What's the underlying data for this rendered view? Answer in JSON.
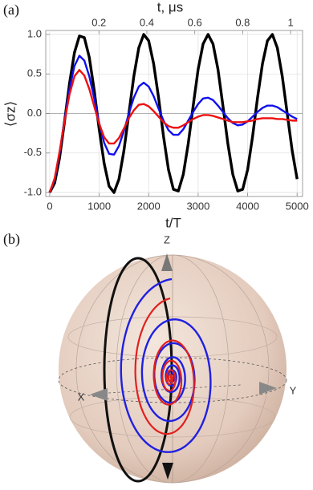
{
  "chart_data": {
    "type": "line",
    "panel_label": "(a)",
    "xlabel": "t/T",
    "x2label": "t, μs",
    "ylabel": "⟨σz⟩",
    "xlim": [
      -80,
      5110
    ],
    "xticks": [
      0,
      1000,
      2000,
      3000,
      4000,
      5000
    ],
    "x2lim": [
      -0.022,
      1.05
    ],
    "x2ticks": [
      0.2,
      0.4,
      0.6,
      0.8,
      1
    ],
    "ylim": [
      -1.05,
      1.05
    ],
    "yticks": [
      {
        "value": -1,
        "label": "-1.0"
      },
      {
        "value": -0.5,
        "label": "-0.5"
      },
      {
        "value": 0,
        "label": "0.0"
      },
      {
        "value": 0.5,
        "label": "0.5"
      },
      {
        "value": 1,
        "label": "1.0"
      }
    ],
    "grid": true,
    "x": [
      0,
      100,
      200,
      300,
      400,
      500,
      600,
      700,
      800,
      900,
      1000,
      1100,
      1200,
      1300,
      1400,
      1500,
      1600,
      1700,
      1800,
      1900,
      2000,
      2100,
      2200,
      2300,
      2400,
      2500,
      2600,
      2700,
      2800,
      2900,
      3000,
      3100,
      3200,
      3300,
      3400,
      3500,
      3600,
      3700,
      3800,
      3900,
      4000,
      4100,
      4200,
      4300,
      4400,
      4500,
      4600,
      4700,
      4800,
      4900,
      5000
    ],
    "series": [
      {
        "color": "#000000",
        "values": [
          -1,
          -0.88,
          -0.56,
          -0.1,
          0.38,
          0.77,
          0.98,
          0.96,
          0.71,
          0.29,
          -0.2,
          -0.63,
          -0.92,
          -1,
          -0.83,
          -0.47,
          0,
          0.47,
          0.83,
          1,
          0.92,
          0.63,
          0.2,
          -0.29,
          -0.71,
          -0.96,
          -0.98,
          -0.77,
          -0.38,
          0.1,
          0.56,
          0.88,
          1,
          0.88,
          0.56,
          0.1,
          -0.38,
          -0.77,
          -0.98,
          -0.96,
          -0.71,
          -0.29,
          0.2,
          0.63,
          0.92,
          1,
          0.83,
          0.47,
          0,
          -0.47,
          -0.83
        ]
      },
      {
        "color": "#1010ee",
        "values": [
          -1,
          -0.84,
          -0.5,
          -0.08,
          0.31,
          0.6,
          0.73,
          0.67,
          0.47,
          0.19,
          -0.12,
          -0.37,
          -0.51,
          -0.52,
          -0.41,
          -0.22,
          0,
          0.2,
          0.34,
          0.39,
          0.34,
          0.22,
          0.06,
          -0.09,
          -0.21,
          -0.27,
          -0.27,
          -0.2,
          -0.09,
          0.02,
          0.12,
          0.19,
          0.2,
          0.17,
          0.1,
          0.02,
          -0.06,
          -0.12,
          -0.15,
          -0.14,
          -0.1,
          -0.04,
          0.02,
          0.07,
          0.1,
          0.1,
          0.08,
          0.04,
          0,
          -0.04,
          -0.07
        ]
      },
      {
        "color": "#ee1010",
        "values": [
          -1,
          -0.82,
          -0.48,
          -0.1,
          0.24,
          0.47,
          0.55,
          0.48,
          0.31,
          0.09,
          -0.13,
          -0.3,
          -0.38,
          -0.38,
          -0.31,
          -0.19,
          -0.06,
          0.04,
          0.11,
          0.12,
          0.09,
          0.03,
          -0.04,
          -0.11,
          -0.16,
          -0.18,
          -0.18,
          -0.15,
          -0.11,
          -0.07,
          -0.04,
          -0.02,
          -0.02,
          -0.03,
          -0.05,
          -0.07,
          -0.09,
          -0.11,
          -0.11,
          -0.11,
          -0.1,
          -0.09,
          -0.07,
          -0.06,
          -0.06,
          -0.06,
          -0.07,
          -0.07,
          -0.08,
          -0.09,
          -0.09
        ]
      }
    ]
  },
  "bloch_sphere": {
    "panel_label": "(b)",
    "z_label": "Z",
    "x_label": "X",
    "y_label": "Y"
  }
}
